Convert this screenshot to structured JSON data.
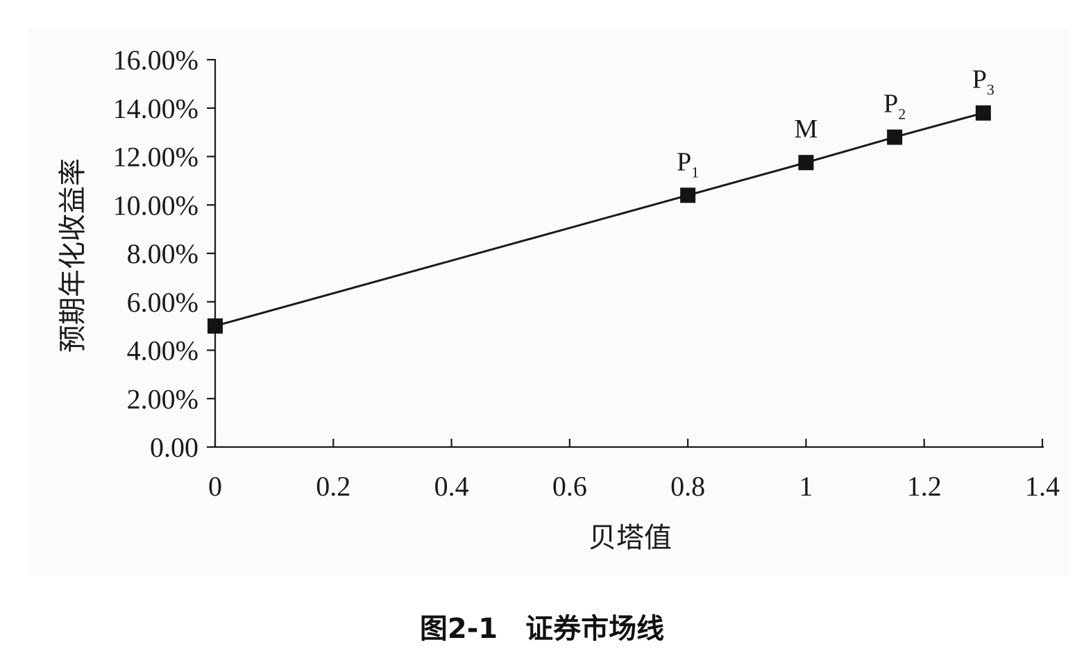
{
  "caption": "图2-1　证券市场线",
  "chart_data": {
    "type": "line",
    "xlabel": "贝塔值",
    "ylabel": "预期年化收益率",
    "xlim": [
      0,
      1.4
    ],
    "ylim": [
      0,
      16
    ],
    "x_ticks": [
      0,
      0.2,
      0.4,
      0.6,
      0.8,
      1,
      1.2,
      1.4
    ],
    "x_tick_labels": [
      "0",
      "0.2",
      "0.4",
      "0.6",
      "0.8",
      "1",
      "1.2",
      "1.4"
    ],
    "y_ticks": [
      0,
      2,
      4,
      6,
      8,
      10,
      12,
      14,
      16
    ],
    "y_tick_labels": [
      "0.00",
      "2.00%",
      "4.00%",
      "6.00%",
      "8.00%",
      "10.00%",
      "12.00%",
      "14.00%",
      "16.00%"
    ],
    "grid": false,
    "series": [
      {
        "points": [
          {
            "x": 0,
            "y": 5.0,
            "label": "",
            "subscript": ""
          },
          {
            "x": 0.8,
            "y": 10.4,
            "label": "P",
            "subscript": "1"
          },
          {
            "x": 1.0,
            "y": 11.75,
            "label": "M",
            "subscript": ""
          },
          {
            "x": 1.15,
            "y": 12.8,
            "label": "P",
            "subscript": "2"
          },
          {
            "x": 1.3,
            "y": 13.8,
            "label": "P",
            "subscript": "3"
          }
        ]
      }
    ]
  }
}
